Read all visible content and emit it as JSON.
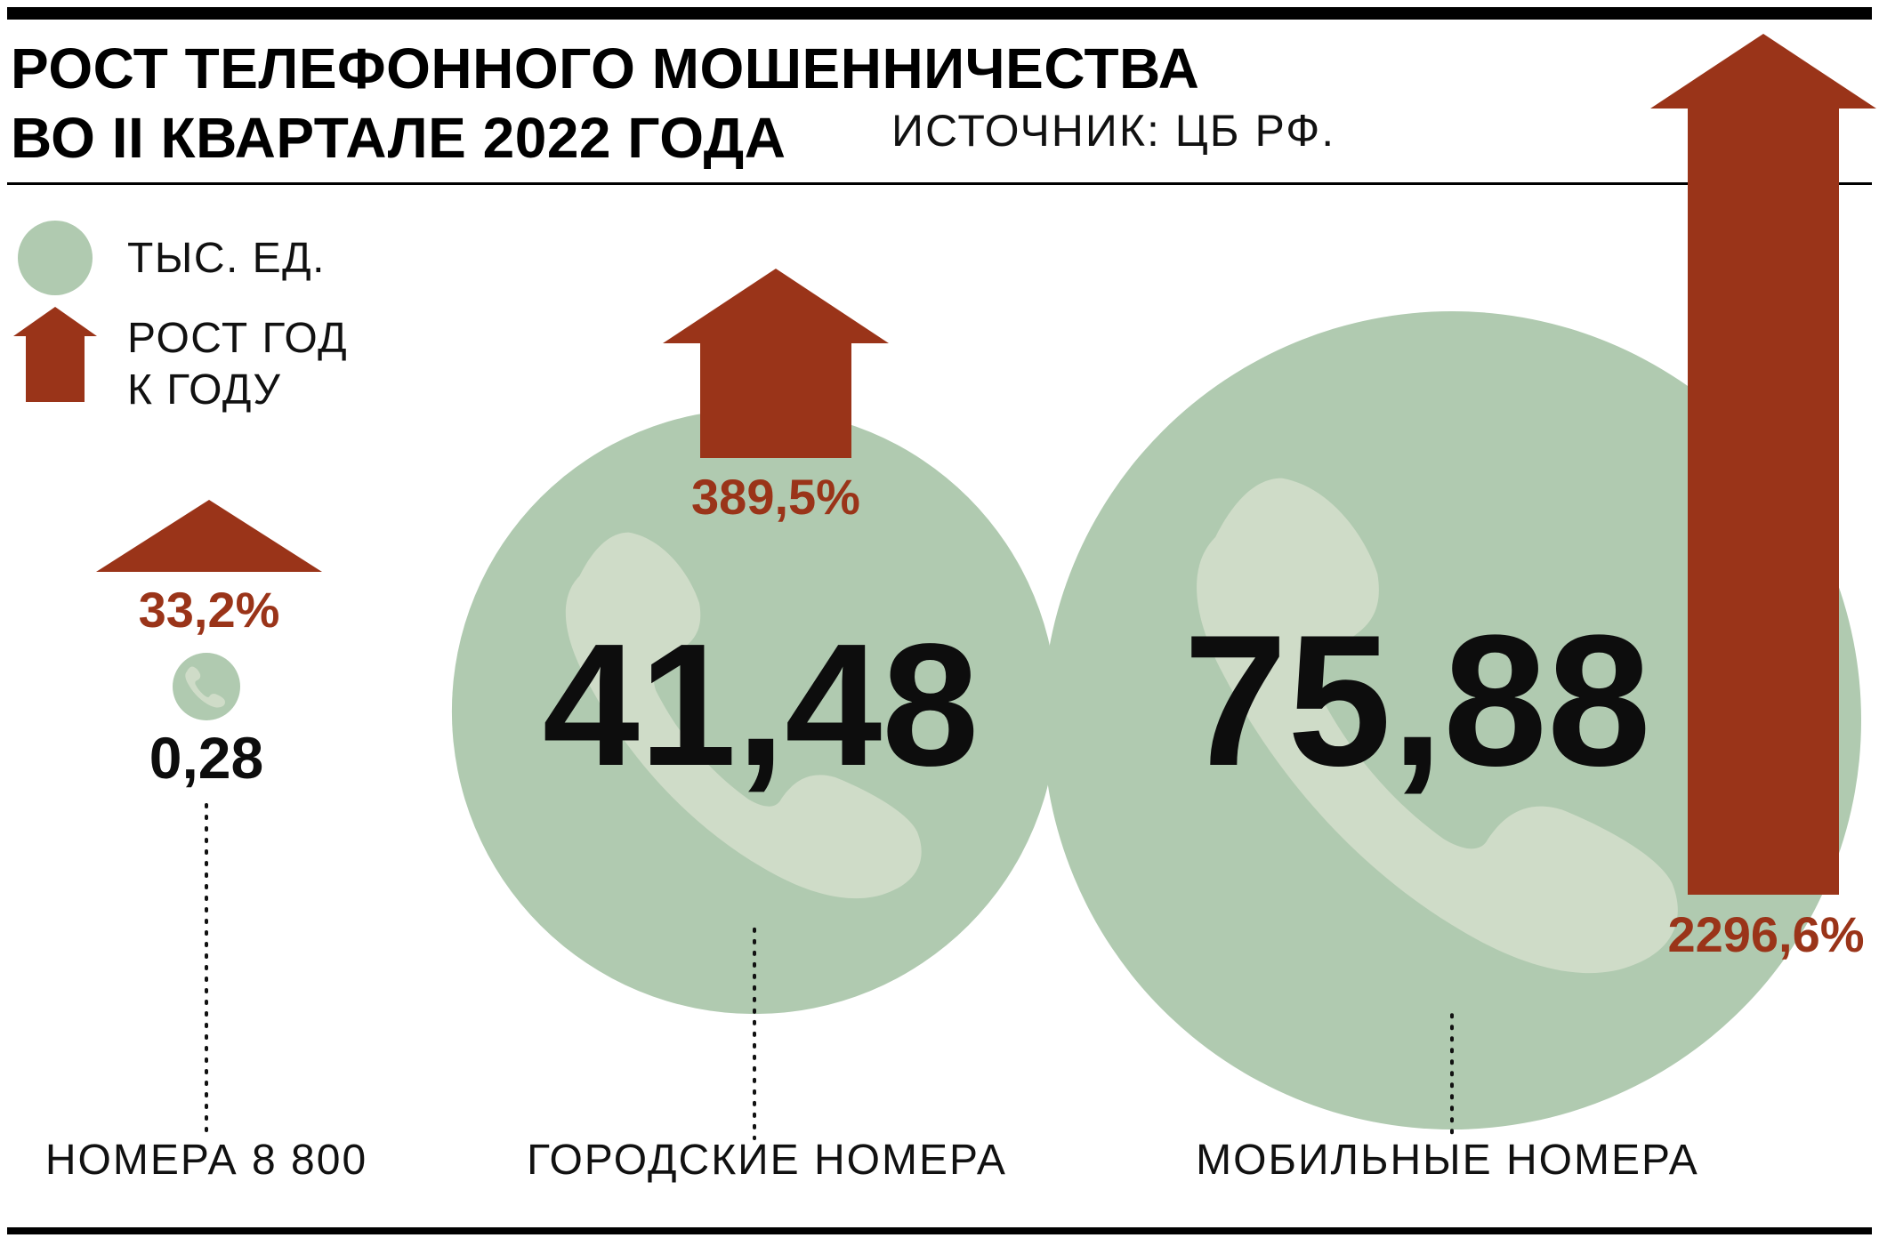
{
  "header": {
    "title_line1": "РОСТ ТЕЛЕФОННОГО МОШЕННИЧЕСТВА",
    "title_line2": "ВО II КВАРТАЛЕ 2022 ГОДА",
    "source": "ИСТОЧНИК: ЦБ РФ."
  },
  "legend": {
    "units_label": "ТЫС. ЕД.",
    "growth_label_line1": "РОСТ ГОД",
    "growth_label_line2": "К ГОДУ"
  },
  "colors": {
    "circle": "#b0cab0",
    "handset": "#cfdcc8",
    "arrow": "#9a3419",
    "text": "#111111"
  },
  "icons": [
    "phone-handset-icon",
    "arrow-up-icon"
  ],
  "chart_data": {
    "type": "bubble",
    "title": "РОСТ ТЕЛЕФОННОГО МОШЕННИЧЕСТВА ВО II КВАРТАЛЕ 2022 ГОДА",
    "units": "ТЫС. ЕД.",
    "categories": [
      "НОМЕРА 8 800",
      "ГОРОДСКИЕ НОМЕРА",
      "МОБИЛЬНЫЕ НОМЕРА"
    ],
    "values": [
      0.28,
      41.48,
      75.88
    ],
    "value_labels": [
      "0,28",
      "41,48",
      "75,88"
    ],
    "growth_yoy_percent": [
      33.2,
      389.5,
      2296.6
    ],
    "growth_labels": [
      "33,2%",
      "389,5%",
      "2296,6%"
    ]
  }
}
